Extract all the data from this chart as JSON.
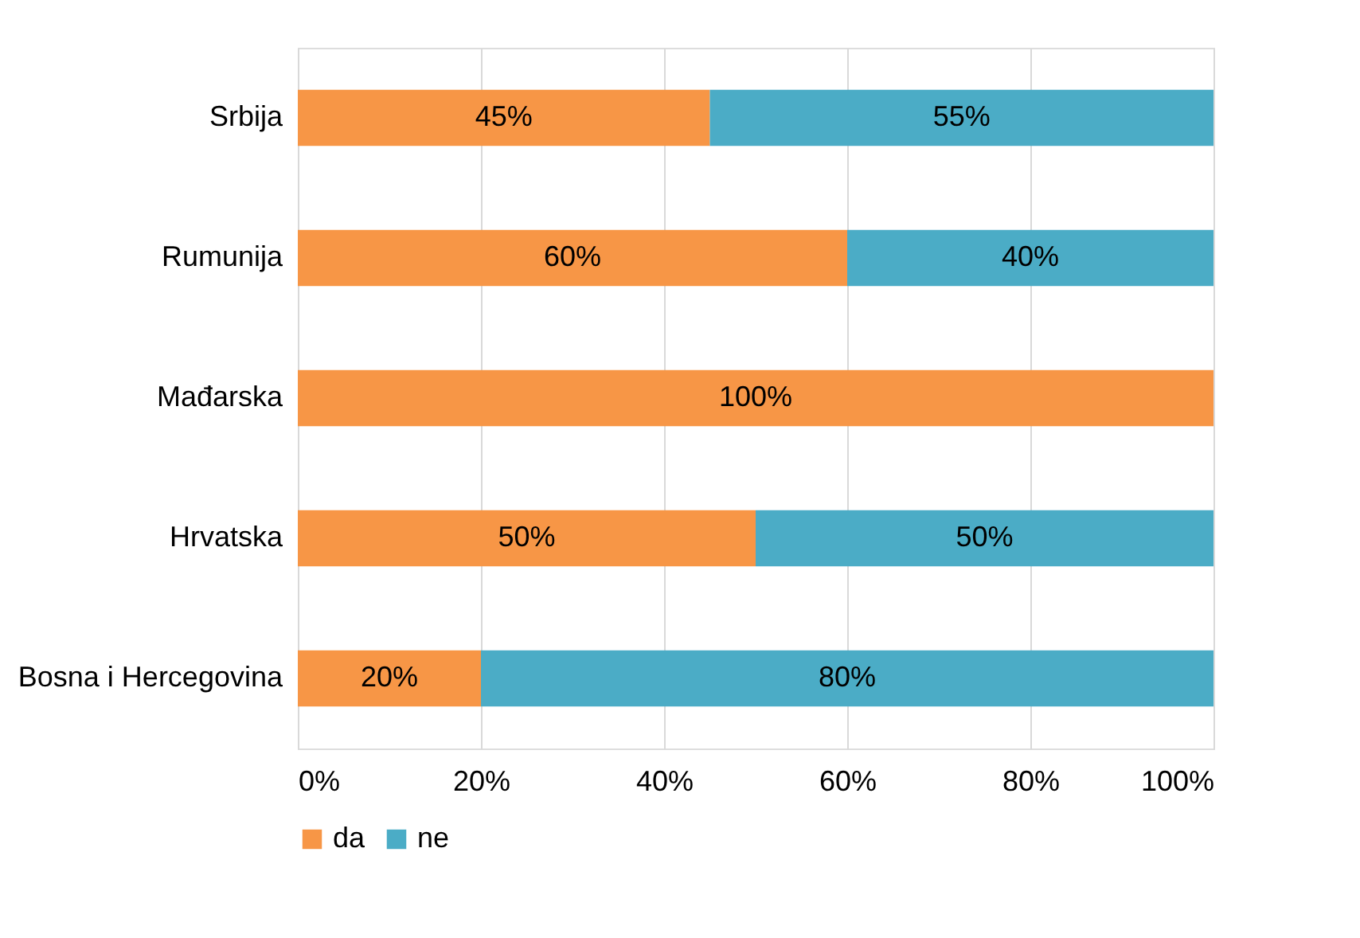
{
  "chart_data": {
    "type": "bar",
    "orientation": "horizontal",
    "stacked": true,
    "categories": [
      "Srbija",
      "Rumunija",
      "Mađarska",
      "Hrvatska",
      "Bosna i Hercegovina"
    ],
    "series": [
      {
        "name": "da",
        "color": "#f79646",
        "values": [
          45,
          60,
          100,
          50,
          20
        ],
        "value_labels": [
          "45%",
          "60%",
          "100%",
          "50%",
          "20%"
        ]
      },
      {
        "name": "ne",
        "color": "#4bacc6",
        "values": [
          55,
          40,
          0,
          50,
          80
        ],
        "value_labels": [
          "55%",
          "40%",
          null,
          "50%",
          "80%"
        ]
      }
    ],
    "xlim": [
      0,
      100
    ],
    "xticks": [
      {
        "value": 0,
        "label": "0%"
      },
      {
        "value": 20,
        "label": "20%"
      },
      {
        "value": 40,
        "label": "40%"
      },
      {
        "value": 60,
        "label": "60%"
      },
      {
        "value": 80,
        "label": "80%"
      },
      {
        "value": 100,
        "label": "100%"
      }
    ],
    "grid": "x",
    "legend": "bottom"
  }
}
